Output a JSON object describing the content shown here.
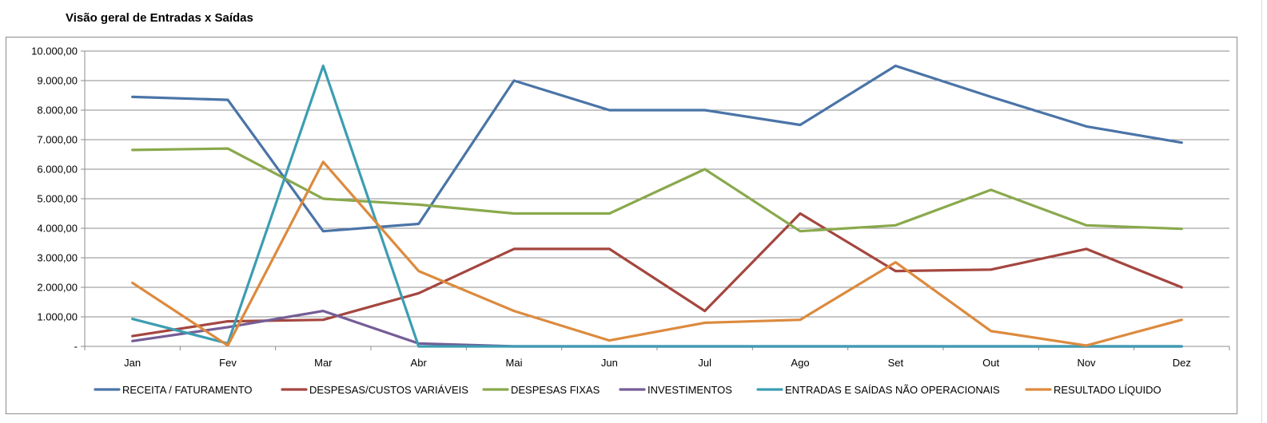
{
  "chart_data": {
    "type": "line",
    "title": "Visão geral de Entradas x Saídas",
    "xlabel": "",
    "ylabel": "",
    "categories": [
      "Jan",
      "Fev",
      "Mar",
      "Abr",
      "Mai",
      "Jun",
      "Jul",
      "Ago",
      "Set",
      "Out",
      "Nov",
      "Dez"
    ],
    "ylim": [
      0,
      10000
    ],
    "yticks": [
      {
        "value": 0,
        "label": "-"
      },
      {
        "value": 1000,
        "label": "1.000,00"
      },
      {
        "value": 2000,
        "label": "2.000,00"
      },
      {
        "value": 3000,
        "label": "3.000,00"
      },
      {
        "value": 4000,
        "label": "4.000,00"
      },
      {
        "value": 5000,
        "label": "5.000,00"
      },
      {
        "value": 6000,
        "label": "6.000,00"
      },
      {
        "value": 7000,
        "label": "7.000,00"
      },
      {
        "value": 8000,
        "label": "8.000,00"
      },
      {
        "value": 9000,
        "label": "9.000,00"
      },
      {
        "value": 10000,
        "label": "10.000,00"
      }
    ],
    "grid": "horizontal",
    "legend_position": "bottom",
    "series": [
      {
        "name": "RECEITA / FATURAMENTO",
        "color": "#4a74a7",
        "values": [
          8450,
          8350,
          3900,
          4150,
          9000,
          8000,
          8000,
          7500,
          9500,
          8450,
          7450,
          6900
        ]
      },
      {
        "name": "DESPESAS/CUSTOS VARIÁVEIS",
        "color": "#a4463f",
        "values": [
          350,
          850,
          900,
          1800,
          3300,
          3300,
          1200,
          4500,
          2550,
          2600,
          3300,
          2000
        ]
      },
      {
        "name": "DESPESAS FIXAS",
        "color": "#89a94c",
        "values": [
          6650,
          6700,
          5000,
          4800,
          4500,
          4500,
          6000,
          3900,
          4100,
          5300,
          4100,
          3980
        ]
      },
      {
        "name": "INVESTIMENTOS",
        "color": "#745d96",
        "values": [
          180,
          650,
          1200,
          100,
          0,
          0,
          0,
          0,
          0,
          0,
          0,
          0
        ]
      },
      {
        "name": "ENTRADAS E SAÍDAS NÃO OPERACIONAIS",
        "color": "#3c9db2",
        "values": [
          930,
          100,
          9500,
          0,
          0,
          0,
          0,
          0,
          0,
          0,
          0,
          0
        ]
      },
      {
        "name": "RESULTADO LÍQUIDO",
        "color": "#dc8a3e",
        "values": [
          2150,
          30,
          6250,
          2550,
          1200,
          200,
          800,
          900,
          2850,
          520,
          30,
          900
        ]
      }
    ]
  }
}
